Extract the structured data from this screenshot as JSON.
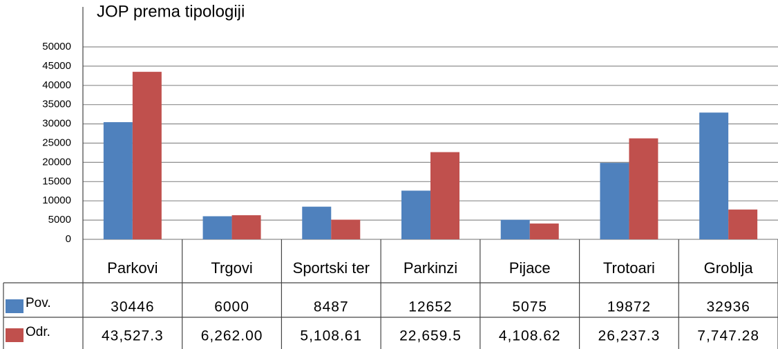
{
  "chart_data": {
    "type": "bar",
    "title": "JOP prema tipologiji",
    "categories": [
      "Parkovi",
      "Trgovi",
      "Sportski ter",
      "Parkinzi",
      "Pijace",
      "Trotoari",
      "Groblja"
    ],
    "series": [
      {
        "name": "Pov.",
        "color": "#4f81bd",
        "values": [
          30446,
          6000,
          8487,
          12652,
          5075,
          19872,
          32936
        ]
      },
      {
        "name": "Odr.",
        "color": "#c0504d",
        "values": [
          43527.3,
          6262.0,
          5108.61,
          22659.5,
          4108.62,
          26237.3,
          7747.28
        ],
        "value_labels": [
          "43,527.3",
          "6,262.00",
          "5,108.61",
          "22,659.5",
          "4,108.62",
          "26,237.3",
          "7,747.28"
        ]
      }
    ],
    "ylim": [
      0,
      50000
    ],
    "yticks": [
      0,
      5000,
      10000,
      15000,
      20000,
      25000,
      30000,
      35000,
      40000,
      45000,
      50000
    ],
    "grid": true
  }
}
